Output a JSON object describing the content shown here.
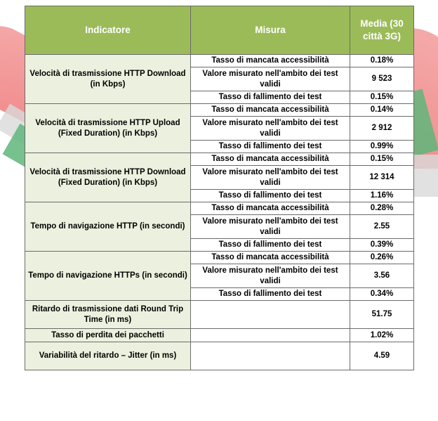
{
  "table": {
    "headers": [
      "Indicatore",
      "Misura",
      "Media (30 città 3G)"
    ],
    "groups": [
      {
        "indicator": "Velocità di trasmissione HTTP Download (in Kbps)",
        "rows": [
          {
            "measure": "Tasso di mancata accessibilità",
            "value": "0.18%"
          },
          {
            "measure": "Valore misurato nell'ambito dei test validi",
            "value": "9 523"
          },
          {
            "measure": "Tasso di fallimento dei test",
            "value": "0.15%"
          }
        ]
      },
      {
        "indicator": "Velocità di trasmissione HTTP Upload (Fixed Duration) (in Kbps)",
        "rows": [
          {
            "measure": "Tasso di mancata accessibilità",
            "value": "0.14%"
          },
          {
            "measure": "Valore misurato nell'ambito dei test validi",
            "value": "2 912"
          },
          {
            "measure": "Tasso di fallimento dei test",
            "value": "0.99%"
          }
        ]
      },
      {
        "indicator": "Velocità di trasmissione HTTP Download (Fixed Duration) (in Kbps)",
        "rows": [
          {
            "measure": "Tasso di mancata accessibilità",
            "value": "0.15%"
          },
          {
            "measure": "Valore misurato nell'ambito dei test validi",
            "value": "12 314"
          },
          {
            "measure": "Tasso di fallimento dei test",
            "value": "1.16%"
          }
        ]
      },
      {
        "indicator": "Tempo di navigazione HTTP (in secondi)",
        "rows": [
          {
            "measure": "Tasso di mancata accessibilità",
            "value": "0.28%"
          },
          {
            "measure": "Valore misurato nell'ambito dei test validi",
            "value": "2.55"
          },
          {
            "measure": "Tasso di fallimento dei test",
            "value": "0.39%"
          }
        ]
      },
      {
        "indicator": "Tempo di navigazione HTTPs (in secondi)",
        "rows": [
          {
            "measure": "Tasso di mancata accessibilità",
            "value": "0.26%"
          },
          {
            "measure": "Valore misurato nell'ambito dei test validi",
            "value": "3.56"
          },
          {
            "measure": "Tasso di fallimento dei test",
            "value": "0.34%"
          }
        ]
      }
    ],
    "singles": [
      {
        "indicator": "Ritardo di trasmissione dati Round Trip Time (in ms)",
        "measure": "",
        "value": "51.75"
      },
      {
        "indicator": "Tasso di perdita dei pacchetti",
        "measure": "",
        "value": "1.02%"
      },
      {
        "indicator": "Variabilità del ritardo – Jitter (in ms)",
        "measure": "",
        "value": "4.59"
      }
    ]
  },
  "colors": {
    "header_bg": "#9bbb59",
    "indicator_bg": "#ebf1de",
    "border": "#6b6b6b"
  }
}
